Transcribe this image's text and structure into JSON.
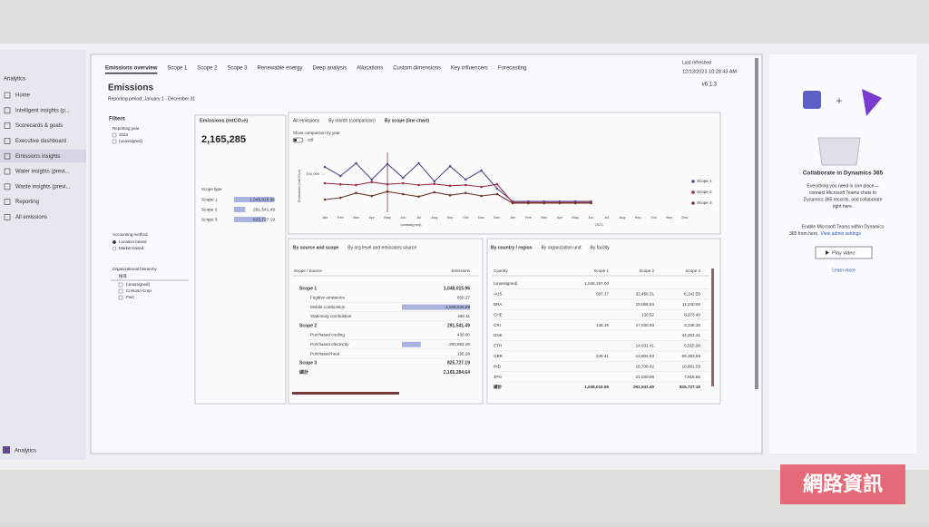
{
  "nav": {
    "header": "Analytics",
    "items": [
      "Home",
      "Intelligent insights (p...",
      "Scorecards & goals",
      "Executive dashboard",
      "Emissions insights",
      "Water insights (previ...",
      "Waste insights (previ...",
      "Reporting",
      "All emissions"
    ],
    "footer": "Analytics"
  },
  "tabs": [
    "Emissions overview",
    "Scope 1",
    "Scope 2",
    "Scope 3",
    "Renewable energy",
    "Deep analysis",
    "Allocations",
    "Custom dimensions",
    "Key influencers",
    "Forecasting"
  ],
  "refresh": {
    "label": "Last refreshed",
    "time": "12/13/2023 10:28:43 AM",
    "version": "v6.1.3"
  },
  "header": {
    "title": "Emissions",
    "period": "Reporting period: January 1 - December 31"
  },
  "filters": {
    "title": "Filters",
    "year": {
      "label": "Reporting year",
      "options": [
        "2023",
        "(unassigned)"
      ]
    },
    "method": {
      "label": "Accounting method",
      "options": [
        "Location based",
        "Market based"
      ]
    },
    "hierarchy": {
      "label": "Organizational hierarchy",
      "search": "搜尋",
      "nodes": [
        "(unassigned)",
        "Contoso Corp",
        "PwC"
      ]
    }
  },
  "total": {
    "label": "Emissions (mtCO₂e)",
    "value": "2,165,285"
  },
  "scope_type": {
    "label": "Scope type",
    "rows": [
      {
        "name": "Scope 1",
        "value": 1048015.96,
        "label": "1,048,015.96"
      },
      {
        "name": "Scope 2",
        "value": 291541.49,
        "label": "291,541.49"
      },
      {
        "name": "Scope 3",
        "value": 825727.19,
        "label": "825,727.19"
      }
    ]
  },
  "line_panel": {
    "tabs": [
      "All emissions",
      "By month (comparison)",
      "By scope (line chart)"
    ],
    "toggle_label": "Show comparison by year",
    "toggle_state": "Off"
  },
  "line_chart": {
    "type": "line",
    "ylabel": "Emissions (mtCO₂e)",
    "categories": [
      "Jan",
      "Feb",
      "Mar",
      "Apr",
      "May",
      "Jun",
      "Jul",
      "Aug",
      "Sep",
      "Oct",
      "Nov",
      "Dec",
      "Jan",
      "Feb",
      "Mar",
      "Apr",
      "May",
      "Jun",
      "Jul",
      "Aug",
      "Sep",
      "Oct",
      "Nov",
      "Dec"
    ],
    "groups": [
      "(unassigned)",
      "2023"
    ],
    "ylim": [
      0,
      150000
    ],
    "yticks": [
      {
        "value": 100000,
        "label": "100,000"
      }
    ],
    "series": [
      {
        "name": "Scope 1",
        "color": "#5b4a8f",
        "values": [
          120000,
          95000,
          130000,
          85000,
          128000,
          90000,
          130000,
          80000,
          122000,
          85000,
          110000,
          60000,
          25000,
          25000,
          25000,
          25000,
          25000,
          25000,
          null,
          null,
          null,
          null,
          null,
          null
        ]
      },
      {
        "name": "Scope 2",
        "color": "#9b2f45",
        "values": [
          75000,
          72000,
          70000,
          78000,
          72000,
          75000,
          70000,
          73000,
          68000,
          70000,
          65000,
          72000,
          22000,
          22000,
          22000,
          22000,
          22000,
          22000,
          null,
          null,
          null,
          null,
          null,
          null
        ]
      },
      {
        "name": "Scope 3",
        "color": "#6b3a2e",
        "values": [
          30000,
          35000,
          48000,
          40000,
          52000,
          45000,
          38000,
          50000,
          42000,
          48000,
          40000,
          45000,
          20000,
          20000,
          20000,
          20000,
          20000,
          20000,
          null,
          null,
          null,
          null,
          null,
          null
        ]
      }
    ]
  },
  "source_panel": {
    "tabs": [
      "By source and scope",
      "By org level and emissions source"
    ],
    "columns": [
      "Scope / Source",
      "Emissions"
    ],
    "scopes": [
      {
        "name": "Scope 1",
        "label": "1,048,015.96",
        "sources": [
          {
            "name": "Fugitive emissions",
            "value": 859.27,
            "label": "859.27"
          },
          {
            "name": "Mobile combustion",
            "value": 1046546.59,
            "label": "1,046,546.59"
          },
          {
            "name": "Stationary combustion",
            "value": 480.11,
            "label": "480.11"
          }
        ]
      },
      {
        "name": "Scope 2",
        "label": "291,541.49",
        "sources": [
          {
            "name": "Purchased cooling",
            "value": 430.0,
            "label": "430.00"
          },
          {
            "name": "Purchased electricity",
            "value": 290853.29,
            "label": "290,853.29"
          },
          {
            "name": "Purchased heat",
            "value": 195.28,
            "label": "195.28"
          }
        ]
      },
      {
        "name": "Scope 3",
        "label": "825,727.19",
        "sources": []
      }
    ],
    "total": {
      "name": "總計",
      "label": "2,165,284.64"
    }
  },
  "country_panel": {
    "tabs": [
      "By country / region",
      "By organization unit",
      "By facility"
    ],
    "columns": [
      "Country",
      "Scope 1",
      "Scope 2",
      "Scope 3"
    ],
    "rows": [
      [
        "(unassigned)",
        "1,048,157.00",
        null,
        null
      ],
      [
        "AUS",
        "587.37",
        "32,489.31",
        "8,142.59"
      ],
      [
        "BRA",
        null,
        "18,056.93",
        "11,240.59"
      ],
      [
        "CHE",
        null,
        "130.52",
        "8,973.40"
      ],
      [
        "CRI",
        "148.15",
        "17,930.93",
        "9,348.35"
      ],
      [
        "DNK",
        null,
        null,
        "44,203.41"
      ],
      [
        "ETH",
        null,
        "14,931.41",
        "5,515.99"
      ],
      [
        "GBR",
        "249.41",
        "13,604.93",
        "69,283.59"
      ],
      [
        "IND",
        null,
        "18,708.42",
        "10,881.59"
      ],
      [
        "JPN",
        null,
        "21,030.09",
        "7,916.56"
      ],
      [
        "總計",
        "1,048,015.96",
        "291,541.49",
        "825,727.19"
      ]
    ]
  },
  "side": {
    "title": "Collaborate in Dynamics 365",
    "description": [
      "Everything you need in one place—",
      "connect Microsoft Teams chats to",
      "Dynamics 365 records, and collaborate",
      "right here."
    ],
    "enable": [
      "Enable Microsoft Teams within Dynamics",
      "365 from here,"
    ],
    "admin_link": "View admin settings",
    "button": "Play video",
    "learn": "Learn more"
  },
  "watermark": "網路資訊"
}
